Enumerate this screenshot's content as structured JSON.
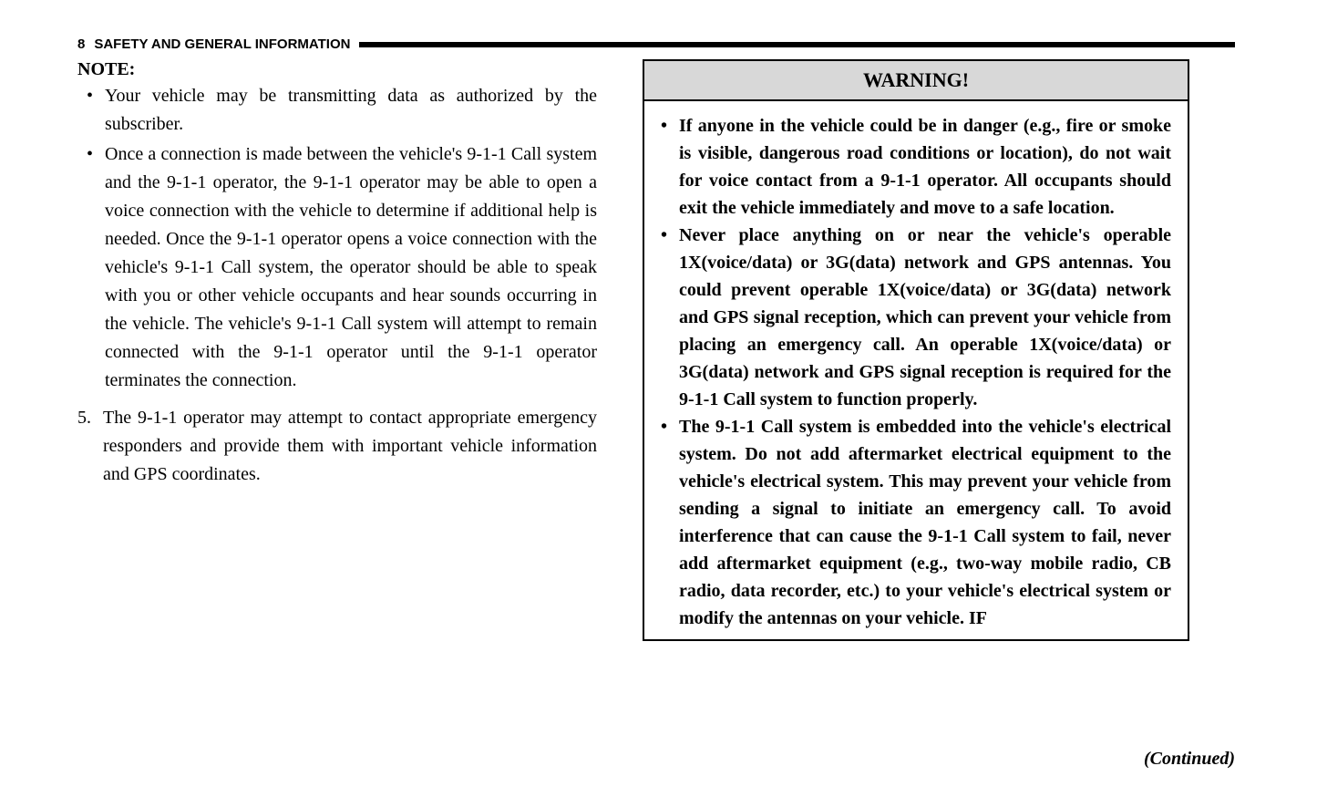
{
  "header": {
    "page_number": "8",
    "section_title": "SAFETY AND GENERAL INFORMATION"
  },
  "left": {
    "note_label": "NOTE:",
    "bullets": [
      "Your vehicle may be transmitting data as authorized by the subscriber.",
      "Once a connection is made between the vehicle's 9-1-1 Call system and the 9-1-1 operator, the 9-1-1 operator may be able to open a voice connection with the vehicle to determine if additional help is needed. Once the 9-1-1 operator opens a voice connection with the vehicle's 9-1-1 Call system, the operator should be able to speak with you or other vehicle occupants and hear sounds occurring in the vehicle. The vehicle's 9-1-1 Call system will attempt to remain connected with the 9-1-1 operator until the 9-1-1 operator terminates the connection."
    ],
    "numbered": {
      "num": "5.",
      "text": "The 9-1-1 operator may attempt to contact appropriate emergency responders and provide them with important vehicle information and GPS coordinates."
    }
  },
  "warning": {
    "title": "WARNING!",
    "bullets": [
      "If anyone in the vehicle could be in danger (e.g., fire or smoke is visible, dangerous road conditions or location), do not wait for voice contact from a 9-1-1 operator. All occupants should exit the vehicle immediately and move to a safe location.",
      "Never place anything on or near the vehicle's operable 1X(voice/data) or 3G(data) network and GPS antennas. You could prevent operable 1X(voice/data) or 3G(data) network and GPS signal reception, which can prevent your vehicle from placing an emergency call. An operable 1X(voice/data) or 3G(data) network and GPS signal reception is required for the 9-1-1 Call system to function properly.",
      "The 9-1-1 Call system is embedded into the vehicle's electrical system. Do not add aftermarket electrical equipment to the vehicle's electrical system. This may prevent your vehicle from sending a signal to initiate an emergency call. To avoid interference that can cause the 9-1-1 Call system to fail, never add aftermarket equipment (e.g., two-way mobile radio, CB radio, data recorder, etc.) to your vehicle's electrical system or modify the antennas on your vehicle. IF"
    ]
  },
  "continued": "(Continued)"
}
